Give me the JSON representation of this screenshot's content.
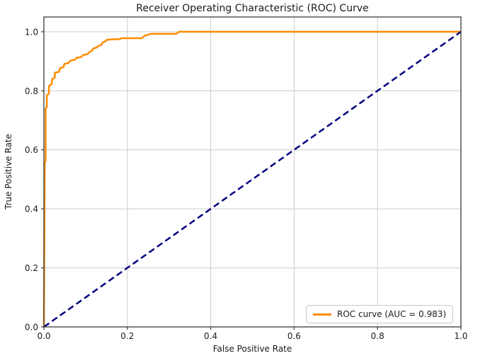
{
  "figure": {
    "title": "Receiver Operating Characteristic (ROC) Curve",
    "xlabel": "False Positive Rate",
    "ylabel": "True Positive Rate"
  },
  "legend": {
    "position": "lower right",
    "entries": [
      {
        "label": "ROC curve (AUC = 0.983)",
        "color": "#ff8c00",
        "linestyle": "solid"
      }
    ]
  },
  "colors": {
    "roc_curve": "#ff8c00",
    "chance_diagonal": "#000080",
    "grid": "#cccccc",
    "spine": "#3c3c3c",
    "text": "#1b1b1b",
    "background": "#ffffff",
    "legend_border": "#c9c9c9"
  },
  "chart_data": {
    "type": "line",
    "title": "Receiver Operating Characteristic (ROC) Curve",
    "xlabel": "False Positive Rate",
    "ylabel": "True Positive Rate",
    "xlim": [
      0.0,
      1.0
    ],
    "ylim": [
      0.0,
      1.05
    ],
    "grid": true,
    "legend_position": "lower right",
    "auc": 0.983,
    "x_ticks": [
      {
        "value": 0.0,
        "label": "0.0"
      },
      {
        "value": 0.2,
        "label": "0.2"
      },
      {
        "value": 0.4,
        "label": "0.4"
      },
      {
        "value": 0.6,
        "label": "0.6"
      },
      {
        "value": 0.8,
        "label": "0.8"
      },
      {
        "value": 1.0,
        "label": "1.0"
      }
    ],
    "y_ticks": [
      {
        "value": 0.0,
        "label": "0.0"
      },
      {
        "value": 0.2,
        "label": "0.2"
      },
      {
        "value": 0.4,
        "label": "0.4"
      },
      {
        "value": 0.6,
        "label": "0.6"
      },
      {
        "value": 0.8,
        "label": "0.8"
      },
      {
        "value": 1.0,
        "label": "1.0"
      }
    ],
    "series": [
      {
        "name": "ROC curve (AUC = 0.983)",
        "role": "roc",
        "color": "#ff8c00",
        "linestyle": "solid",
        "linewidth": 2.5,
        "points": [
          [
            0.0,
            0.0
          ],
          [
            0.002,
            0.557
          ],
          [
            0.004,
            0.56
          ],
          [
            0.004,
            0.6
          ],
          [
            0.004,
            0.74
          ],
          [
            0.007,
            0.745
          ],
          [
            0.007,
            0.785
          ],
          [
            0.012,
            0.79
          ],
          [
            0.012,
            0.817
          ],
          [
            0.018,
            0.821
          ],
          [
            0.02,
            0.84
          ],
          [
            0.026,
            0.844
          ],
          [
            0.026,
            0.861
          ],
          [
            0.036,
            0.864
          ],
          [
            0.039,
            0.877
          ],
          [
            0.047,
            0.88
          ],
          [
            0.049,
            0.891
          ],
          [
            0.059,
            0.894
          ],
          [
            0.063,
            0.902
          ],
          [
            0.074,
            0.905
          ],
          [
            0.079,
            0.912
          ],
          [
            0.089,
            0.914
          ],
          [
            0.094,
            0.921
          ],
          [
            0.104,
            0.924
          ],
          [
            0.109,
            0.931
          ],
          [
            0.115,
            0.935
          ],
          [
            0.118,
            0.943
          ],
          [
            0.127,
            0.947
          ],
          [
            0.13,
            0.952
          ],
          [
            0.138,
            0.955
          ],
          [
            0.14,
            0.963
          ],
          [
            0.147,
            0.967
          ],
          [
            0.15,
            0.972
          ],
          [
            0.16,
            0.974
          ],
          [
            0.182,
            0.975
          ],
          [
            0.186,
            0.978
          ],
          [
            0.235,
            0.978
          ],
          [
            0.242,
            0.987
          ],
          [
            0.25,
            0.99
          ],
          [
            0.257,
            0.993
          ],
          [
            0.318,
            0.993
          ],
          [
            0.324,
            1.0
          ],
          [
            1.0,
            1.0
          ]
        ]
      },
      {
        "name": "chance",
        "role": "chance",
        "color": "#000080",
        "linestyle": "dashed",
        "linewidth": 2.5,
        "points": [
          [
            0.0,
            0.0
          ],
          [
            1.0,
            1.0
          ]
        ]
      }
    ]
  }
}
